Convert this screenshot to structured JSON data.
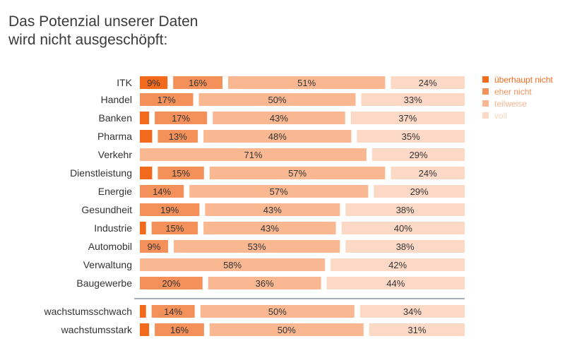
{
  "chart_data": {
    "type": "bar",
    "orientation": "horizontal",
    "stacked": true,
    "normalized_percent": true,
    "title": "Das Potenzial unserer Daten\nwird nicht ausgeschöpft:",
    "xlabel": "",
    "ylabel": "",
    "xlim": [
      0,
      100
    ],
    "grid": false,
    "legend_position": "right",
    "categories": [
      "ITK",
      "Handel",
      "Banken",
      "Pharma",
      "Verkehr",
      "Dienstleistung",
      "Energie",
      "Gesundheit",
      "Industrie",
      "Automobil",
      "Verwaltung",
      "Baugewerbe",
      "wachstumsschwach",
      "wachstumsstark"
    ],
    "group_separator_after": "Baugewerbe",
    "series": [
      {
        "name": "überhaupt nicht",
        "color": "#f26a1b",
        "values": [
          9,
          0,
          3,
          4,
          0,
          4,
          0,
          0,
          2,
          0,
          0,
          0,
          2,
          3
        ]
      },
      {
        "name": "eher nicht",
        "color": "#f4915a",
        "values": [
          16,
          17,
          17,
          13,
          0,
          15,
          14,
          19,
          15,
          9,
          0,
          20,
          14,
          16
        ]
      },
      {
        "name": "teilweise",
        "color": "#f9b892",
        "values": [
          51,
          50,
          43,
          48,
          71,
          57,
          57,
          43,
          43,
          53,
          58,
          36,
          50,
          50
        ]
      },
      {
        "name": "voll",
        "color": "#fcd9c6",
        "values": [
          24,
          33,
          37,
          35,
          29,
          24,
          29,
          38,
          40,
          38,
          42,
          44,
          34,
          31
        ]
      }
    ],
    "label_suffix": "%",
    "legend_text_colors": [
      "#f26a1b",
      "#f4915a",
      "#f7b590",
      "#fbd3bd"
    ]
  }
}
